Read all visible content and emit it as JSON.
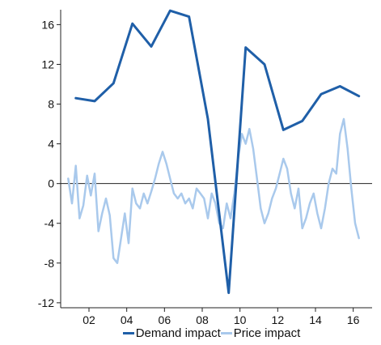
{
  "chart_data": {
    "type": "line",
    "title": "",
    "xlabel": "",
    "ylabel": "",
    "xlim": [
      2000.5,
      2017.0
    ],
    "ylim": [
      -12.5,
      17.5
    ],
    "xticks": [
      2002,
      2004,
      2006,
      2008,
      2010,
      2012,
      2014,
      2016
    ],
    "xtick_labels": [
      "02",
      "04",
      "06",
      "08",
      "10",
      "12",
      "14",
      "16"
    ],
    "yticks": [
      -12,
      -8,
      -4,
      0,
      4,
      8,
      12,
      16
    ],
    "ytick_labels": [
      "-12",
      "-8",
      "-4",
      "0",
      "4",
      "8",
      "12",
      "16"
    ],
    "zero_line": true,
    "grid": false,
    "legend_position": "bottom",
    "series": [
      {
        "name": "Demand impact",
        "color": "#1f5fa8",
        "x": [
          2001.3,
          2002.3,
          2003.3,
          2004.3,
          2005.3,
          2006.3,
          2007.3,
          2008.3,
          2009.4,
          2010.3,
          2011.3,
          2012.3,
          2013.3,
          2014.3,
          2015.3,
          2016.3
        ],
        "y": [
          8.6,
          8.3,
          10.1,
          16.1,
          13.8,
          17.4,
          16.8,
          6.5,
          -11.0,
          13.7,
          12.0,
          5.4,
          6.3,
          9.0,
          9.8,
          8.8
        ]
      },
      {
        "name": "Price impact",
        "color": "#a9c9ec",
        "x": [
          2000.9,
          2001.1,
          2001.3,
          2001.5,
          2001.7,
          2001.9,
          2002.1,
          2002.3,
          2002.5,
          2002.7,
          2002.9,
          2003.1,
          2003.3,
          2003.5,
          2003.7,
          2003.9,
          2004.1,
          2004.3,
          2004.5,
          2004.7,
          2004.9,
          2005.1,
          2005.3,
          2005.5,
          2005.7,
          2005.9,
          2006.1,
          2006.3,
          2006.5,
          2006.7,
          2006.9,
          2007.1,
          2007.3,
          2007.5,
          2007.7,
          2007.9,
          2008.1,
          2008.3,
          2008.5,
          2008.7,
          2008.9,
          2009.1,
          2009.3,
          2009.5,
          2009.7,
          2009.9,
          2010.1,
          2010.3,
          2010.5,
          2010.7,
          2010.9,
          2011.1,
          2011.3,
          2011.5,
          2011.7,
          2011.9,
          2012.1,
          2012.3,
          2012.5,
          2012.7,
          2012.9,
          2013.1,
          2013.3,
          2013.5,
          2013.7,
          2013.9,
          2014.1,
          2014.3,
          2014.5,
          2014.7,
          2014.9,
          2015.1,
          2015.3,
          2015.5,
          2015.7,
          2015.9,
          2016.1,
          2016.3
        ],
        "y": [
          0.5,
          -2.0,
          1.8,
          -3.5,
          -2.2,
          0.8,
          -1.2,
          1.0,
          -4.8,
          -3.0,
          -1.5,
          -3.2,
          -7.5,
          -8.0,
          -5.5,
          -3.0,
          -6.0,
          -0.5,
          -2.0,
          -2.5,
          -1.0,
          -2.0,
          -0.8,
          0.5,
          2.0,
          3.2,
          2.0,
          0.5,
          -1.0,
          -1.5,
          -1.0,
          -2.0,
          -1.5,
          -2.5,
          -0.5,
          -1.0,
          -1.5,
          -3.5,
          -1.0,
          -2.0,
          -4.0,
          -4.5,
          -2.0,
          -3.5,
          -1.0,
          2.5,
          5.0,
          4.0,
          5.5,
          3.5,
          0.5,
          -2.5,
          -4.0,
          -3.0,
          -1.5,
          -0.5,
          1.0,
          2.5,
          1.5,
          -1.0,
          -2.5,
          -0.5,
          -4.5,
          -3.5,
          -2.0,
          -1.0,
          -3.0,
          -4.5,
          -2.5,
          0.0,
          1.5,
          1.0,
          5.0,
          6.5,
          3.5,
          -0.5,
          -4.0,
          -5.5
        ]
      }
    ]
  }
}
